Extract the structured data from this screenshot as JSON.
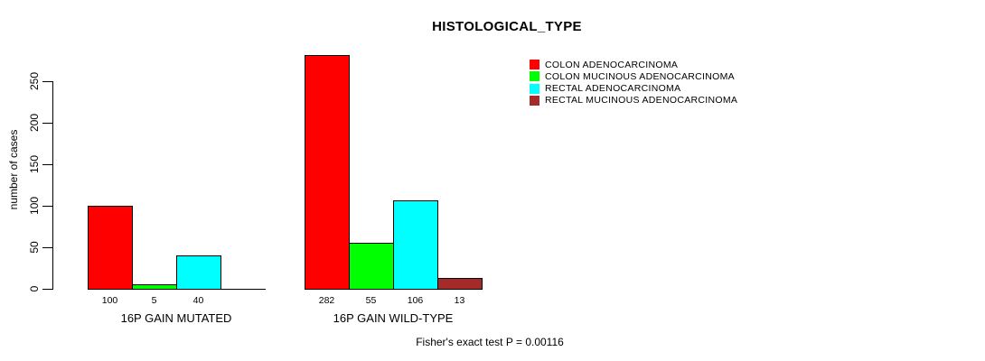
{
  "chart_data": {
    "type": "bar",
    "title": "HISTOLOGICAL_TYPE",
    "ylabel": "number of cases",
    "yticks": [
      0,
      50,
      100,
      150,
      200,
      250
    ],
    "ylim": [
      0,
      285
    ],
    "grid": false,
    "legend_position": "top-right",
    "categories": [
      "16P GAIN MUTATED",
      "16P GAIN WILD-TYPE"
    ],
    "groups": [
      {
        "label": "16P GAIN MUTATED",
        "values": [
          100,
          5,
          40,
          0
        ]
      },
      {
        "label": "16P GAIN WILD-TYPE",
        "values": [
          282,
          55,
          106,
          13
        ]
      }
    ],
    "series": [
      {
        "name": "COLON ADENOCARCINOMA",
        "color": "#ff0000"
      },
      {
        "name": "COLON MUCINOUS ADENOCARCINOMA",
        "color": "#00ff00"
      },
      {
        "name": "RECTAL ADENOCARCINOMA",
        "color": "#00ffff"
      },
      {
        "name": "RECTAL MUCINOUS ADENOCARCINOMA",
        "color": "#a52a2a"
      }
    ],
    "footer": "Fisher's exact test P = 0.00116"
  }
}
